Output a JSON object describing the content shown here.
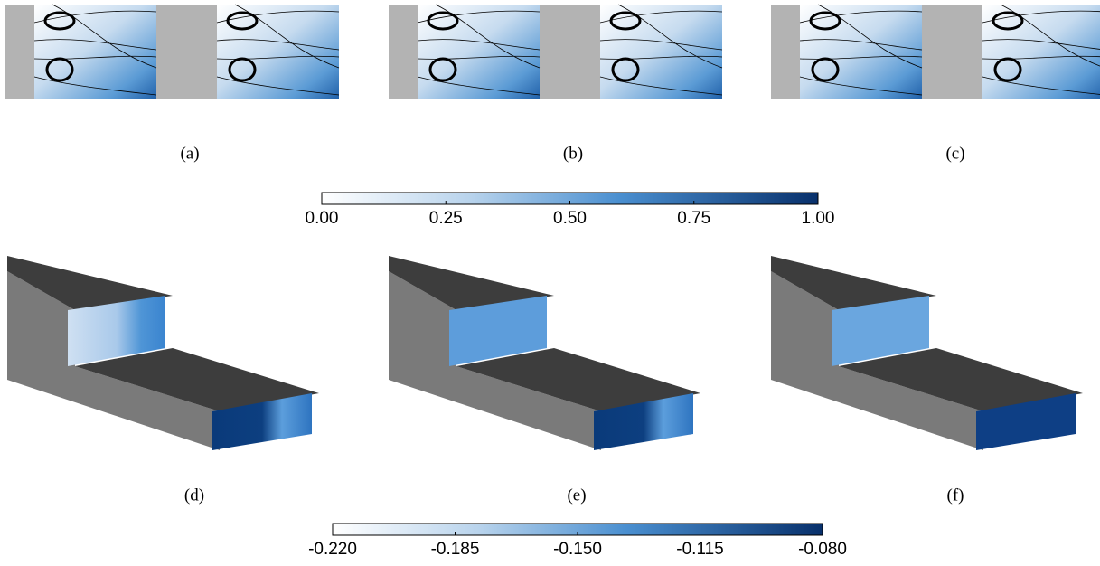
{
  "panel_labels": [
    "(a)",
    "(b)",
    "(c)",
    "(d)",
    "(e)",
    "(f)"
  ],
  "colorbars": [
    {
      "lim": [
        0,
        1
      ],
      "ticks": [
        {
          "value": 0,
          "label": "0.00"
        },
        {
          "value": 0.25,
          "label": "0.25"
        },
        {
          "value": 0.5,
          "label": "0.50"
        },
        {
          "value": 0.75,
          "label": "0.75"
        },
        {
          "value": 1,
          "label": "1.00"
        }
      ]
    },
    {
      "lim": [
        -0.22,
        -0.08
      ],
      "ticks": [
        {
          "value": -0.22,
          "label": "-0.220"
        },
        {
          "value": -0.185,
          "label": "-0.185"
        },
        {
          "value": -0.15,
          "label": "-0.150"
        },
        {
          "value": -0.115,
          "label": "-0.115"
        },
        {
          "value": -0.08,
          "label": "-0.080"
        }
      ]
    }
  ]
}
